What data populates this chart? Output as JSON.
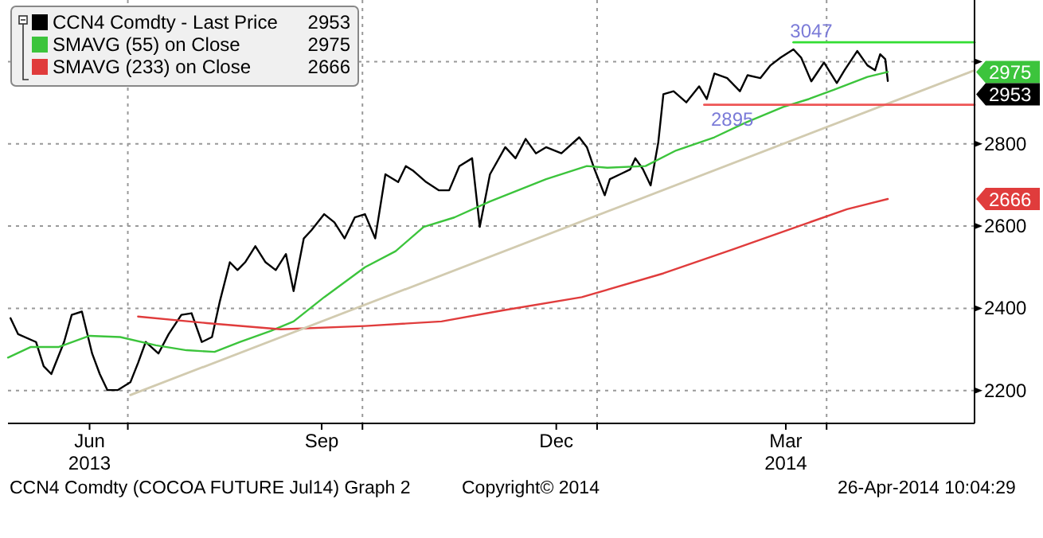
{
  "chart_data": {
    "type": "line",
    "xlim": [
      "2013-05-15",
      "2014-05-29"
    ],
    "ylim": [
      2120,
      3150
    ],
    "xticks": [
      {
        "value": "2013-06-16",
        "label": "Jun\n2013"
      },
      {
        "value": "2013-07-01",
        "label": null
      },
      {
        "value": "2013-09-15",
        "label": "Sep"
      },
      {
        "value": "2013-10-01",
        "label": null
      },
      {
        "value": "2013-12-16",
        "label": "Dec"
      },
      {
        "value": "2014-01-01",
        "label": null
      },
      {
        "value": "2014-03-16",
        "label": "Mar\n2014"
      },
      {
        "value": "2014-04-01",
        "label": null
      }
    ],
    "yticks": [
      2200,
      2400,
      2600,
      2800,
      {
        "value": 3000,
        "label": null
      }
    ],
    "grid": true,
    "legend": "top left",
    "series": [
      {
        "name": "CCN4 Comdty - Last Price",
        "color": "#000000",
        "x": [
          "2013-05-16",
          "2013-05-19",
          "2013-05-26",
          "2013-05-29",
          "2013-06-01",
          "2013-06-06",
          "2013-06-09",
          "2013-06-13",
          "2013-06-17",
          "2013-06-20",
          "2013-06-23",
          "2013-06-27",
          "2013-07-02",
          "2013-07-05",
          "2013-07-08",
          "2013-07-13",
          "2013-07-17",
          "2013-07-22",
          "2013-07-26",
          "2013-07-30",
          "2013-08-03",
          "2013-08-06",
          "2013-08-10",
          "2013-08-13",
          "2013-08-16",
          "2013-08-20",
          "2013-08-24",
          "2013-08-28",
          "2013-09-01",
          "2013-09-04",
          "2013-09-08",
          "2013-09-11",
          "2013-09-16",
          "2013-09-20",
          "2013-09-24",
          "2013-09-28",
          "2013-10-02",
          "2013-10-06",
          "2013-10-10",
          "2013-10-15",
          "2013-10-18",
          "2013-10-21",
          "2013-10-26",
          "2013-10-31",
          "2013-11-04",
          "2013-11-08",
          "2013-11-13",
          "2013-11-16",
          "2013-11-20",
          "2013-11-26",
          "2013-11-30",
          "2013-12-04",
          "2013-12-08",
          "2013-12-12",
          "2013-12-18",
          "2013-12-25",
          "2013-12-28",
          "2013-12-31",
          "2014-01-04",
          "2014-01-06",
          "2014-01-10",
          "2014-01-14",
          "2014-01-16",
          "2014-01-19",
          "2014-01-22",
          "2014-01-25",
          "2014-01-27",
          "2014-01-31",
          "2014-02-05",
          "2014-02-10",
          "2014-02-13",
          "2014-02-16",
          "2014-02-21",
          "2014-02-26",
          "2014-03-01",
          "2014-03-06",
          "2014-03-10",
          "2014-03-14",
          "2014-03-19",
          "2014-03-22",
          "2014-03-26",
          "2014-03-31",
          "2014-04-05",
          "2014-04-08",
          "2014-04-13",
          "2014-04-17",
          "2014-04-20",
          "2014-04-22",
          "2014-04-24",
          "2014-04-25"
        ],
        "values": [
          2376,
          2337,
          2318,
          2259,
          2240,
          2318,
          2384,
          2392,
          2290,
          2240,
          2201,
          2201,
          2220,
          2267,
          2318,
          2290,
          2337,
          2384,
          2388,
          2318,
          2330,
          2415,
          2512,
          2493,
          2512,
          2551,
          2512,
          2493,
          2532,
          2442,
          2570,
          2590,
          2629,
          2609,
          2570,
          2621,
          2629,
          2570,
          2726,
          2707,
          2746,
          2734,
          2707,
          2687,
          2687,
          2746,
          2765,
          2598,
          2726,
          2792,
          2765,
          2812,
          2777,
          2792,
          2777,
          2816,
          2792,
          2738,
          2675,
          2714,
          2726,
          2738,
          2765,
          2738,
          2699,
          2804,
          2921,
          2928,
          2901,
          2940,
          2909,
          2971,
          2960,
          2928,
          2967,
          2960,
          2991,
          3010,
          3030,
          3010,
          2952,
          2998,
          2948,
          2979,
          3026,
          2991,
          2979,
          3018,
          3006,
          2953
        ]
      },
      {
        "name": "SMAVG (55) on Close",
        "color": "#3cc43c",
        "x": [
          "2013-05-15",
          "2013-05-24",
          "2013-06-04",
          "2013-06-16",
          "2013-06-28",
          "2013-07-12",
          "2013-07-24",
          "2013-08-04",
          "2013-08-14",
          "2013-08-26",
          "2013-09-04",
          "2013-09-16",
          "2013-10-02",
          "2013-10-14",
          "2013-10-25",
          "2013-11-06",
          "2013-11-20",
          "2013-12-12",
          "2013-12-28",
          "2014-01-05",
          "2014-01-20",
          "2014-02-01",
          "2014-02-16",
          "2014-02-28",
          "2014-03-15",
          "2014-03-25",
          "2014-04-04",
          "2014-04-17",
          "2014-04-25"
        ],
        "values": [
          2280,
          2306,
          2306,
          2333,
          2330,
          2310,
          2298,
          2294,
          2318,
          2345,
          2368,
          2427,
          2500,
          2539,
          2598,
          2621,
          2660,
          2714,
          2746,
          2742,
          2746,
          2784,
          2816,
          2851,
          2890,
          2909,
          2932,
          2963,
          2975
        ]
      },
      {
        "name": "SMAVG (233) on Close",
        "color": "#e03c3c",
        "x": [
          "2013-07-05",
          "2013-08-01",
          "2013-08-30",
          "2013-10-02",
          "2013-11-01",
          "2013-11-25",
          "2013-12-26",
          "2014-01-27",
          "2014-02-23",
          "2014-03-22",
          "2014-04-09",
          "2014-04-25"
        ],
        "values": [
          2380,
          2364,
          2349,
          2357,
          2368,
          2395,
          2427,
          2485,
          2543,
          2602,
          2641,
          2666
        ]
      },
      {
        "type": "line",
        "color": "#d2cbb0",
        "x": [
          "2013-07-02",
          "2014-05-29"
        ],
        "values": [
          2189,
          2979
        ]
      },
      {
        "type": "line",
        "color": "#33dd33",
        "x": [
          "2014-03-19",
          "2014-05-29"
        ],
        "values": [
          3047,
          3047
        ]
      },
      {
        "type": "line",
        "color": "#ee5555",
        "x": [
          "2014-02-12",
          "2014-05-29"
        ],
        "values": [
          2895,
          2895
        ]
      }
    ],
    "annotations": [
      {
        "text": "3047",
        "x": "2014-03-26",
        "y": 3047
      },
      {
        "text": "2895",
        "x": "2014-02-23",
        "y": 2895
      },
      "2953",
      "2975",
      "2666",
      "CCN4 Comdty (COCOA FUTURE      Jul14) Graph 2",
      "Copyright© 2014",
      "26-Apr-2014 10:04:29"
    ]
  }
}
